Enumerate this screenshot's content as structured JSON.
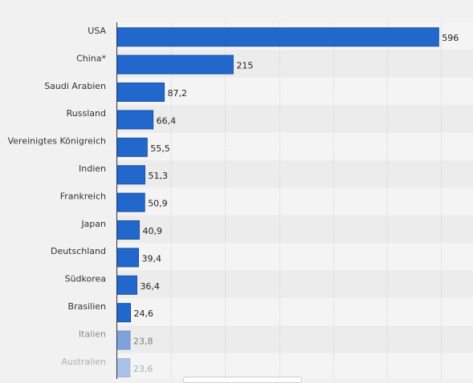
{
  "chart_data": {
    "type": "bar",
    "orientation": "horizontal",
    "categories": [
      "USA",
      "China*",
      "Saudi Arabien",
      "Russland",
      "Vereinigtes Königreich",
      "Indien",
      "Frankreich",
      "Japan",
      "Deutschland",
      "Südkorea",
      "Brasilien",
      "Italien",
      "Australien"
    ],
    "values": [
      596,
      215,
      87.2,
      66.4,
      55.5,
      51.3,
      50.9,
      40.9,
      39.4,
      36.4,
      24.6,
      23.8,
      23.6
    ],
    "value_labels": [
      "596",
      "215",
      "87,2",
      "66,4",
      "55,5",
      "51,3",
      "50,9",
      "40,9",
      "39,4",
      "36,4",
      "24,6",
      "23,8",
      "23,6"
    ],
    "xlim": [
      0,
      600
    ],
    "grid": true,
    "title": "",
    "xlabel": "",
    "ylabel": ""
  },
  "colors": {
    "bar": "#2268cc",
    "bar_border": "#1a4fa3",
    "band_light": "#f4f4f4",
    "band_dark": "#ececec",
    "grid": "#c8c8c8"
  }
}
